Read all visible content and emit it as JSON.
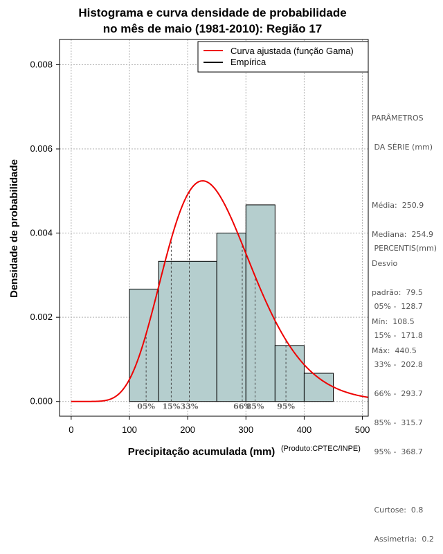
{
  "chart_data": {
    "type": "histogram",
    "title_lines": [
      "Histograma e curva densidade de probabilidade",
      "no mês de maio (1981-2010): Região 17"
    ],
    "xlabel": "Precipitação acumulada (mm)",
    "ylabel": "Densidade de probabilidade",
    "xlim": [
      -20,
      510
    ],
    "ylim": [
      -0.00035,
      0.0086
    ],
    "x_ticks": [
      0,
      100,
      200,
      300,
      400,
      500
    ],
    "y_ticks": [
      0.0,
      0.002,
      0.004,
      0.006,
      0.008
    ],
    "y_tick_labels": [
      "0.000",
      "0.002",
      "0.004",
      "0.006",
      "0.008"
    ],
    "grid": true,
    "bins": [
      {
        "x0": 100,
        "x1": 150,
        "density": 0.00267
      },
      {
        "x0": 150,
        "x1": 250,
        "density": 0.00333
      },
      {
        "x0": 250,
        "x1": 300,
        "density": 0.004
      },
      {
        "x0": 300,
        "x1": 350,
        "density": 0.00467
      },
      {
        "x0": 350,
        "x1": 400,
        "density": 0.00133
      },
      {
        "x0": 400,
        "x1": 450,
        "density": 0.00067
      }
    ],
    "bar_color": "#b5cece",
    "curve": {
      "name": "Curva ajustada (função Gama)",
      "color": "#ee0000",
      "distribution": "gamma",
      "mean": 250.9,
      "sd": 79.5,
      "x_range": [
        0,
        510
      ]
    },
    "legend": [
      {
        "label": "Curva ajustada (função Gama)",
        "color": "#ee0000"
      },
      {
        "label": "Empírica",
        "color": "#000000"
      }
    ],
    "legend_position": "top-right",
    "percentile_markers": [
      {
        "label": "05%",
        "value": 128.7
      },
      {
        "label": "15%",
        "value": 171.8
      },
      {
        "label": "33%",
        "value": 202.8
      },
      {
        "label": "66%",
        "value": 293.7
      },
      {
        "label": "85%",
        "value": 315.7
      },
      {
        "label": "95%",
        "value": 368.7
      }
    ],
    "credit": "(Produto:CPTEC/INPE)"
  },
  "side_panel": {
    "params_title_1": "PARÂMETROS",
    "params_title_2": " DA SÉRIE (mm)",
    "media": "Média:  250.9",
    "mediana": "Mediana:  254.9",
    "desvio_1": "Desvio",
    "desvio_2": "padrão:  79.5",
    "min": "Mín:  108.5",
    "max": "Máx:  440.5",
    "pct_title": " PERCENTIS(mm)",
    "p05": " 05% -  128.7",
    "p15": " 15% -  171.8",
    "p33": " 33% -  202.8",
    "p66": " 66% -  293.7",
    "p85": " 85% -  315.7",
    "p95": " 95% -  368.7",
    "curtose": " Curtose:  0.8",
    "assimetria": " Assimetria:  0.2"
  }
}
